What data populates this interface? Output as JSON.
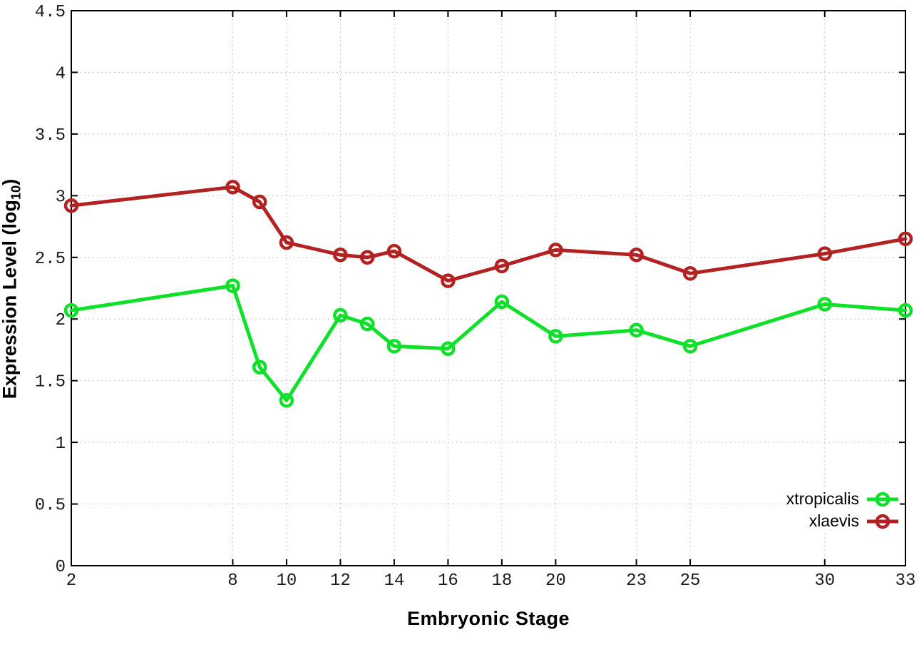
{
  "chart_data": {
    "type": "line",
    "title": "",
    "xlabel": "Embryonic Stage",
    "ylabel": "Expression Level (log10)",
    "ylabel_prefix": "Expression Level (log",
    "ylabel_sub": "10",
    "ylabel_suffix": ")",
    "marker": "open-circle",
    "grid": true,
    "legend_position": "bottom-right-inside",
    "xlim": [
      2,
      33
    ],
    "ylim": [
      0,
      4.5
    ],
    "x": [
      2,
      8,
      9,
      10,
      12,
      13,
      14,
      16,
      18,
      20,
      23,
      25,
      30,
      33
    ],
    "x_tick_values": [
      2,
      8,
      10,
      12,
      14,
      16,
      18,
      20,
      23,
      25,
      30,
      33
    ],
    "x_tick_labels": [
      "2",
      "8",
      "10",
      "12",
      "14",
      "16",
      "18",
      "20",
      "23",
      "25",
      "30",
      "33"
    ],
    "y_tick_values": [
      0,
      0.5,
      1,
      1.5,
      2,
      2.5,
      3,
      3.5,
      4,
      4.5
    ],
    "y_tick_labels": [
      "0",
      "0.5",
      "1",
      "1.5",
      "2",
      "2.5",
      "3",
      "3.5",
      "4",
      "4.5"
    ],
    "series": [
      {
        "name": "xtropicalis",
        "color": "#0fe029",
        "values": [
          2.07,
          2.27,
          1.61,
          1.34,
          2.03,
          1.96,
          1.78,
          1.76,
          2.14,
          1.86,
          1.91,
          1.78,
          2.12,
          2.07
        ]
      },
      {
        "name": "xlaevis",
        "color": "#b22222",
        "values": [
          2.92,
          3.07,
          2.95,
          2.62,
          2.52,
          2.5,
          2.55,
          2.31,
          2.43,
          2.56,
          2.52,
          2.37,
          2.53,
          2.65
        ]
      }
    ]
  }
}
